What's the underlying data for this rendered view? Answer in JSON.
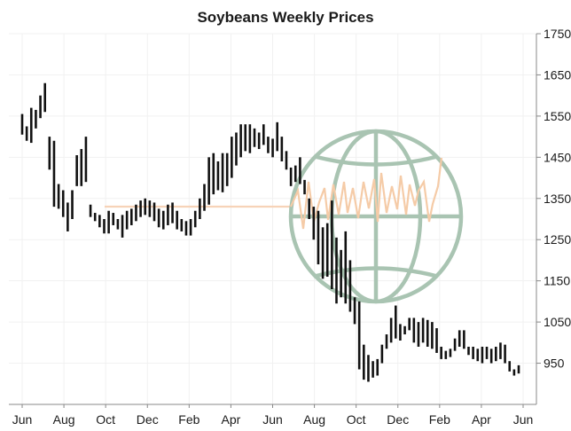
{
  "chart_data": {
    "type": "bar",
    "subtype": "weekly-range-bars",
    "title": "Soybeans Weekly Prices",
    "xlabel": "",
    "ylabel": "",
    "ylim": [
      850,
      1750
    ],
    "y_ticks": [
      950,
      1050,
      1150,
      1250,
      1350,
      1450,
      1550,
      1650,
      1750
    ],
    "y_axis_position": "right",
    "x_ticks": [
      "Jun",
      "Aug",
      "Oct",
      "Dec",
      "Feb",
      "Apr",
      "Jun",
      "Aug",
      "Oct",
      "Dec",
      "Feb",
      "Apr",
      "Jun"
    ],
    "grid": true,
    "colors": {
      "bars": "#111111",
      "globe": "#a9c4b2",
      "wave": "#f5cba7"
    },
    "logo": "globe-with-price-wave",
    "series": [
      {
        "bars_low": [
          1505,
          1490,
          1485,
          1520,
          1545,
          1560,
          1420,
          1330,
          1325,
          1305,
          1270,
          1300,
          1380,
          1380,
          1390,
          1305,
          1295,
          1280,
          1265,
          1265,
          1285,
          1275,
          1255,
          1275,
          1285,
          1295,
          1305,
          1310,
          1305,
          1295,
          1280,
          1275,
          1285,
          1290,
          1275,
          1270,
          1260,
          1260,
          1280,
          1300,
          1320,
          1335,
          1360,
          1370,
          1365,
          1380,
          1400,
          1430,
          1450,
          1465,
          1460,
          1475,
          1470,
          1480,
          1460,
          1450,
          1465,
          1440,
          1420,
          1380,
          1390,
          1385,
          1360,
          1300,
          1250,
          1190,
          1155,
          1160,
          1130,
          1095,
          1110,
          1095,
          1075,
          1045,
          935,
          910,
          905,
          915,
          920,
          950,
          985,
          1000,
          1010,
          1005,
          1020,
          1030,
          1000,
          990,
          1000,
          990,
          985,
          975,
          960,
          960,
          965,
          980,
          990,
          985,
          970,
          960,
          955,
          950,
          960,
          950,
          955,
          960,
          950,
          930,
          920,
          925
        ],
        "bars_high": [
          1555,
          1525,
          1570,
          1565,
          1600,
          1630,
          1500,
          1490,
          1385,
          1370,
          1340,
          1370,
          1455,
          1470,
          1500,
          1335,
          1315,
          1310,
          1300,
          1320,
          1315,
          1300,
          1310,
          1320,
          1325,
          1335,
          1345,
          1350,
          1345,
          1340,
          1325,
          1320,
          1335,
          1340,
          1320,
          1300,
          1295,
          1300,
          1320,
          1350,
          1385,
          1450,
          1460,
          1440,
          1460,
          1460,
          1500,
          1510,
          1530,
          1530,
          1530,
          1520,
          1510,
          1530,
          1500,
          1495,
          1535,
          1500,
          1465,
          1425,
          1430,
          1450,
          1395,
          1350,
          1330,
          1320,
          1280,
          1290,
          1345,
          1255,
          1225,
          1270,
          1200,
          1110,
          1100,
          995,
          970,
          955,
          960,
          995,
          1020,
          1060,
          1090,
          1045,
          1040,
          1060,
          1060,
          1050,
          1060,
          1055,
          1050,
          1035,
          990,
          980,
          985,
          1010,
          1030,
          1030,
          990,
          990,
          985,
          990,
          990,
          985,
          990,
          1000,
          995,
          955,
          935,
          945
        ]
      }
    ]
  }
}
